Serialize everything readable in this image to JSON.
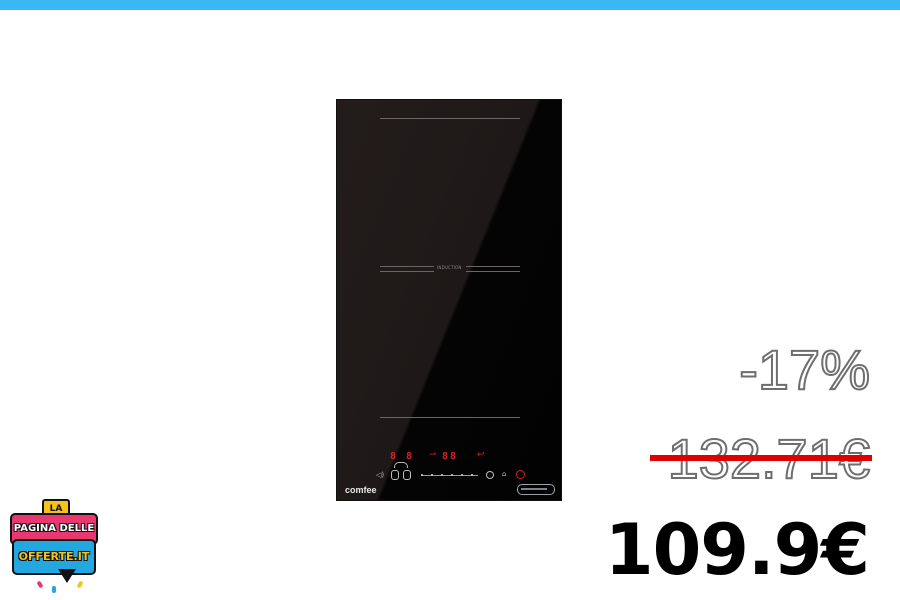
{
  "product": {
    "panel_label": "INDUCTION",
    "display_left": "8 8",
    "display_right": "88",
    "brand": "comfee"
  },
  "pricing": {
    "discount": "-17%",
    "old_price": "132.71€",
    "new_price": "109.9€"
  },
  "logo": {
    "small": "LA",
    "line1": "PAGINA DELLE",
    "line2": "OFFERTE.IT"
  },
  "colors": {
    "top_bar": "#3bb7f5",
    "strike": "#e00000",
    "display": "#e21c1c"
  }
}
